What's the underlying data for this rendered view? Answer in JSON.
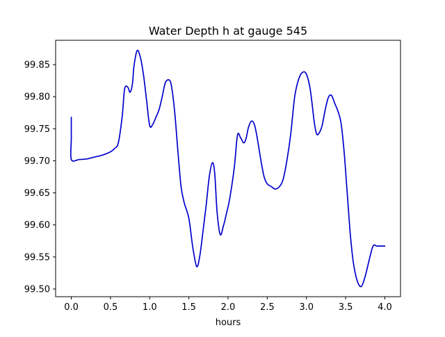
{
  "chart_data": {
    "type": "line",
    "title": "Water Depth h at gauge 545",
    "xlabel": "hours",
    "ylabel": "",
    "xlim": [
      -0.2,
      4.2
    ],
    "ylim": [
      99.488,
      99.888
    ],
    "xticks": [
      0.0,
      0.5,
      1.0,
      1.5,
      2.0,
      2.5,
      3.0,
      3.5,
      4.0
    ],
    "xtick_labels": [
      "0.0",
      "0.5",
      "1.0",
      "1.5",
      "2.0",
      "2.5",
      "3.0",
      "3.5",
      "4.0"
    ],
    "yticks": [
      99.5,
      99.55,
      99.6,
      99.65,
      99.7,
      99.75,
      99.8,
      99.85
    ],
    "ytick_labels": [
      "99.50",
      "99.55",
      "99.60",
      "99.65",
      "99.70",
      "99.75",
      "99.80",
      "99.85"
    ],
    "grid": false,
    "line_color": "#0000cc",
    "series": [
      {
        "x": [
          0.0,
          0.0,
          0.0,
          0.1,
          0.2,
          0.3,
          0.4,
          0.5,
          0.55,
          0.6,
          0.65,
          0.68,
          0.72,
          0.75,
          0.78,
          0.8,
          0.84,
          0.88,
          0.92,
          0.96,
          1.0,
          1.04,
          1.08,
          1.12,
          1.16,
          1.2,
          1.25,
          1.28,
          1.32,
          1.36,
          1.4,
          1.44,
          1.5,
          1.55,
          1.6,
          1.64,
          1.68,
          1.72,
          1.76,
          1.8,
          1.83,
          1.86,
          1.9,
          1.94,
          1.98,
          2.02,
          2.08,
          2.12,
          2.16,
          2.2,
          2.23,
          2.26,
          2.3,
          2.34,
          2.38,
          2.42,
          2.46,
          2.5,
          2.55,
          2.6,
          2.65,
          2.7,
          2.75,
          2.8,
          2.85,
          2.9,
          2.95,
          3.0,
          3.05,
          3.1,
          3.13,
          3.16,
          3.2,
          3.24,
          3.28,
          3.32,
          3.36,
          3.4,
          3.44,
          3.48,
          3.52,
          3.56,
          3.6,
          3.65,
          3.7,
          3.75,
          3.8,
          3.85,
          3.9,
          3.95,
          4.0
        ],
        "y": [
          99.768,
          99.735,
          99.702,
          99.702,
          99.703,
          99.706,
          99.709,
          99.714,
          99.719,
          99.728,
          99.77,
          99.812,
          99.815,
          99.807,
          99.82,
          99.848,
          99.872,
          99.862,
          99.835,
          99.795,
          99.755,
          99.757,
          99.768,
          99.78,
          99.8,
          99.822,
          99.826,
          99.815,
          99.775,
          99.715,
          99.66,
          99.635,
          99.61,
          99.565,
          99.535,
          99.552,
          99.59,
          99.63,
          99.675,
          99.697,
          99.68,
          99.62,
          99.585,
          99.598,
          99.618,
          99.64,
          99.69,
          99.74,
          99.736,
          99.728,
          99.735,
          99.752,
          99.762,
          99.755,
          99.73,
          99.7,
          99.675,
          99.664,
          99.66,
          99.656,
          99.659,
          99.67,
          99.7,
          99.742,
          99.8,
          99.827,
          99.838,
          99.835,
          99.81,
          99.76,
          99.742,
          99.743,
          99.755,
          99.78,
          99.799,
          99.802,
          99.79,
          99.778,
          99.76,
          99.715,
          99.65,
          99.585,
          99.54,
          99.512,
          99.504,
          99.52,
          99.545,
          99.567,
          99.567,
          99.567,
          99.567
        ]
      }
    ]
  }
}
